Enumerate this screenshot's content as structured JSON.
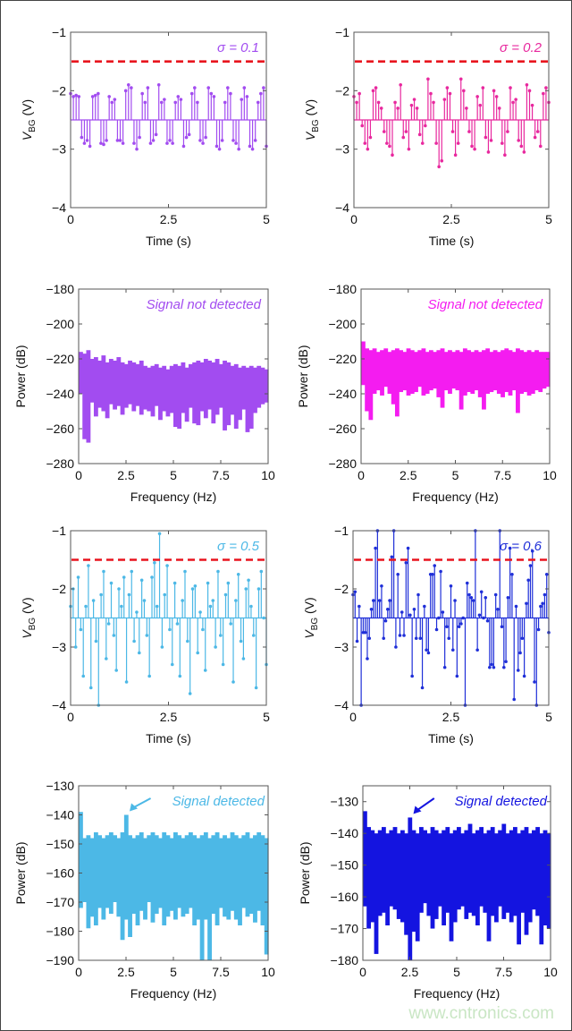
{
  "watermark": "www.cntronics.com",
  "threshold_color": "#e8141e",
  "chart_data": [
    {
      "type": "stem",
      "annotation": "σ = 0.1",
      "color": "#a24cf0",
      "xlim": [
        0,
        5
      ],
      "ylim": [
        -4,
        -1
      ],
      "xticks": [
        0,
        2.5,
        5
      ],
      "yticks": [
        -4,
        -3,
        -2,
        -1
      ],
      "xlabel": "Time (s)",
      "ylabel": {
        "symbol": "V",
        "subscript": "BG",
        "unit": " (V)"
      },
      "baseline": -2.5,
      "threshold": -1.5,
      "values": [
        -2.05,
        -2.1,
        -2.08,
        -2.1,
        -2.8,
        -2.9,
        -2.85,
        -2.95,
        -2.1,
        -2.08,
        -2.05,
        -2.9,
        -2.92,
        -2.85,
        -2.1,
        -2.2,
        -2.15,
        -2.85,
        -2.85,
        -2.9,
        -2.0,
        -1.9,
        -1.95,
        -2.9,
        -3.0,
        -2.8,
        -2.05,
        -2.2,
        -1.95,
        -2.9,
        -2.85,
        -2.75,
        -1.9,
        -2.2,
        -2.15,
        -2.9,
        -2.85,
        -2.9,
        -2.2,
        -2.1,
        -2.15,
        -2.95,
        -2.8,
        -2.75,
        -2.05,
        -1.95,
        -2.2,
        -2.85,
        -2.9,
        -2.8,
        -1.95,
        -2.05,
        -2.1,
        -2.95,
        -3.0,
        -2.85,
        -2.2,
        -1.95,
        -2.05,
        -2.85,
        -2.9,
        -3.0,
        -2.15,
        -1.95,
        -2.1,
        -2.95,
        -3.0,
        -2.85,
        -2.2,
        -2.05,
        -1.95,
        -2.95
      ]
    },
    {
      "type": "stem",
      "annotation": "σ = 0.2",
      "color": "#e8289e",
      "xlim": [
        0,
        5
      ],
      "ylim": [
        -4,
        -1
      ],
      "xticks": [
        0,
        2.5,
        5
      ],
      "yticks": [
        -4,
        -3,
        -2,
        -1
      ],
      "xlabel": "Time (s)",
      "ylabel": {
        "symbol": "V",
        "subscript": "BG",
        "unit": " (V)"
      },
      "baseline": -2.5,
      "threshold": -1.5,
      "values": [
        -2.1,
        -2.2,
        -2.05,
        -2.6,
        -2.9,
        -3.0,
        -2.8,
        -2.0,
        -1.95,
        -2.2,
        -2.3,
        -2.7,
        -2.9,
        -2.95,
        -3.1,
        -2.2,
        -2.3,
        -1.9,
        -2.8,
        -2.7,
        -3.0,
        -2.25,
        -2.15,
        -2.3,
        -2.75,
        -2.9,
        -2.6,
        -1.8,
        -2.05,
        -2.2,
        -2.9,
        -3.3,
        -3.2,
        -2.15,
        -1.95,
        -2.05,
        -2.7,
        -3.1,
        -2.9,
        -1.8,
        -2.0,
        -2.3,
        -2.7,
        -2.95,
        -3.0,
        -2.1,
        -2.25,
        -1.95,
        -2.8,
        -3.05,
        -2.85,
        -2.0,
        -2.1,
        -2.3,
        -2.9,
        -3.1,
        -2.7,
        -1.95,
        -2.2,
        -2.15,
        -2.85,
        -2.95,
        -3.05,
        -1.9,
        -2.0,
        -2.25,
        -2.8,
        -2.7,
        -2.95,
        -2.05,
        -1.95,
        -2.2
      ]
    },
    {
      "type": "spectrum",
      "annotation": "Signal not detected",
      "color": "#a24cf0",
      "xlim": [
        0,
        10
      ],
      "ylim": [
        -280,
        -180
      ],
      "xticks": [
        0,
        2.5,
        5,
        7.5,
        10
      ],
      "yticks": [
        -280,
        -260,
        -240,
        -220,
        -200,
        -180
      ],
      "xlabel": "Frequency (Hz)",
      "ylabel": "Power (dB)",
      "upper": [
        -216,
        -217,
        -215,
        -220,
        -219,
        -221,
        -218,
        -222,
        -220,
        -221,
        -219,
        -222,
        -223,
        -221,
        -222,
        -223,
        -221,
        -224,
        -225,
        -224,
        -223,
        -225,
        -224,
        -226,
        -224,
        -223,
        -224,
        -222,
        -225,
        -223,
        -222,
        -221,
        -222,
        -220,
        -221,
        -222,
        -220,
        -223,
        -221,
        -222,
        -224,
        -223,
        -225,
        -224,
        -225,
        -224,
        -225,
        -224,
        -225,
        -226
      ],
      "lower": [
        -240,
        -266,
        -268,
        -245,
        -253,
        -248,
        -250,
        -254,
        -246,
        -249,
        -247,
        -252,
        -248,
        -246,
        -250,
        -247,
        -252,
        -249,
        -250,
        -253,
        -247,
        -255,
        -250,
        -253,
        -251,
        -259,
        -260,
        -251,
        -256,
        -248,
        -257,
        -258,
        -250,
        -254,
        -249,
        -257,
        -252,
        -248,
        -261,
        -258,
        -252,
        -260,
        -255,
        -249,
        -262,
        -260,
        -251,
        -248,
        -246,
        -245
      ]
    },
    {
      "type": "spectrum",
      "annotation": "Signal not detected",
      "color": "#f41cf0",
      "xlim": [
        0,
        10
      ],
      "ylim": [
        -280,
        -180
      ],
      "xticks": [
        0,
        2.5,
        5,
        7.5,
        10
      ],
      "yticks": [
        -280,
        -260,
        -240,
        -220,
        -200,
        -180
      ],
      "xlabel": "Frequency (Hz)",
      "ylabel": "Power (dB)",
      "upper": [
        -210,
        -214,
        -215,
        -214,
        -216,
        -215,
        -214,
        -216,
        -215,
        -214,
        -215,
        -216,
        -214,
        -215,
        -216,
        -215,
        -214,
        -216,
        -215,
        -216,
        -215,
        -214,
        -216,
        -215,
        -216,
        -215,
        -216,
        -214,
        -215,
        -216,
        -215,
        -216,
        -215,
        -214,
        -216,
        -215,
        -216,
        -215,
        -214,
        -215,
        -216,
        -214,
        -215,
        -216,
        -215,
        -216,
        -215,
        -216,
        -216,
        -216
      ],
      "lower": [
        -235,
        -250,
        -255,
        -240,
        -238,
        -241,
        -236,
        -240,
        -246,
        -253,
        -239,
        -238,
        -241,
        -240,
        -239,
        -236,
        -241,
        -240,
        -238,
        -237,
        -242,
        -248,
        -238,
        -240,
        -237,
        -238,
        -249,
        -241,
        -239,
        -240,
        -238,
        -242,
        -249,
        -240,
        -239,
        -238,
        -240,
        -242,
        -239,
        -241,
        -238,
        -251,
        -240,
        -239,
        -241,
        -240,
        -238,
        -239,
        -237,
        -236
      ]
    },
    {
      "type": "stem",
      "annotation": "σ = 0.5",
      "color": "#4cb8e6",
      "xlim": [
        0,
        5
      ],
      "ylim": [
        -4,
        -1
      ],
      "xticks": [
        0,
        2.5,
        5
      ],
      "yticks": [
        -4,
        -3,
        -2,
        -1
      ],
      "xlabel": "Time (s)",
      "ylabel": {
        "symbol": "V",
        "subscript": "BG",
        "unit": " (V)"
      },
      "baseline": -2.5,
      "threshold": -1.5,
      "values": [
        -2.3,
        -2.0,
        -3.0,
        -1.8,
        -2.7,
        -3.5,
        -2.3,
        -1.6,
        -3.7,
        -2.2,
        -2.9,
        -4.0,
        -2.1,
        -1.7,
        -3.2,
        -2.6,
        -1.9,
        -2.8,
        -3.4,
        -2.0,
        -2.3,
        -1.8,
        -3.6,
        -2.1,
        -1.7,
        -2.9,
        -2.4,
        -3.1,
        -1.85,
        -2.2,
        -2.8,
        -3.5,
        -1.8,
        -1.55,
        -2.3,
        -1.05,
        -3.0,
        -2.1,
        -1.6,
        -2.7,
        -3.3,
        -1.9,
        -2.6,
        -3.5,
        -2.2,
        -1.7,
        -2.9,
        -3.8,
        -2.0,
        -1.95,
        -3.1,
        -2.4,
        -2.7,
        -3.4,
        -1.9,
        -2.3,
        -2.2,
        -3.0,
        -1.7,
        -2.8,
        -3.3,
        -2.1,
        -1.9,
        -2.6,
        -3.6,
        -2.2,
        -1.75,
        -2.9,
        -3.2,
        -2.0,
        -1.85,
        -2.3,
        -2.8,
        -3.7,
        -2.0,
        -1.7,
        -2.5,
        -3.3
      ]
    },
    {
      "type": "stem",
      "annotation": "σ = 0.6",
      "color": "#1f2fd8",
      "xlim": [
        0,
        5
      ],
      "ylim": [
        -4,
        -1
      ],
      "xticks": [
        0,
        2.5,
        5
      ],
      "yticks": [
        -4,
        -3,
        -2,
        -1
      ],
      "xlabel": "Time (s)",
      "ylabel": {
        "symbol": "V",
        "subscript": "BG",
        "unit": " (V)"
      },
      "baseline": -2.5,
      "threshold": -1.5,
      "values": [
        -2.1,
        -2.05,
        -2.9,
        -2.3,
        -4.0,
        -2.75,
        -2.75,
        -3.2,
        -2.85,
        -2.35,
        -2.2,
        -1.3,
        -1.0,
        -2.2,
        -1.95,
        -2.85,
        -2.55,
        -2.35,
        -2.2,
        -1.45,
        -1.0,
        -3.0,
        -1.75,
        -2.8,
        -2.4,
        -2.8,
        -1.55,
        -1.3,
        -2.45,
        -3.5,
        -2.35,
        -2.85,
        -2.1,
        -2.85,
        -3.7,
        -2.3,
        -3.05,
        -3.1,
        -1.75,
        -1.75,
        -1.6,
        -2.7,
        -2.5,
        -1.7,
        -2.4,
        -3.35,
        -2.65,
        -2.85,
        -1.95,
        -3.05,
        -2.2,
        -3.5,
        -2.65,
        -2.6,
        -2.5,
        -4.0,
        -1.9,
        -2.1,
        -2.15,
        -2.2,
        -1.0,
        -3.05,
        -2.45,
        -2.05,
        -2.5,
        -2.15,
        -2.55,
        -3.35,
        -3.3,
        -3.35,
        -2.1,
        -2.35,
        -1.0,
        -2.65,
        -3.35,
        -3.25,
        -2.15,
        -1.3,
        -1.75,
        -3.9,
        -2.3,
        -3.4,
        -3.1,
        -2.85,
        -3.5,
        -2.25,
        -1.85,
        -1.6,
        -1.35,
        -3.6,
        -4.0,
        -2.7,
        -2.3,
        -2.25,
        -2.1,
        -1.75,
        -2.75
      ]
    },
    {
      "type": "spectrum",
      "annotation": "Signal detected",
      "annotation_arrow_x": 2.5,
      "color": "#4cb8e6",
      "xlim": [
        0,
        10
      ],
      "ylim": [
        -190,
        -130
      ],
      "xticks": [
        0,
        2.5,
        5,
        7.5,
        10
      ],
      "yticks": [
        -190,
        -180,
        -170,
        -160,
        -150,
        -140,
        -130
      ],
      "xlabel": "Frequency (Hz)",
      "ylabel": "Power (dB)",
      "upper": [
        -139,
        -148,
        -147,
        -148,
        -146,
        -147,
        -148,
        -147,
        -146,
        -147,
        -148,
        -146,
        -140,
        -147,
        -148,
        -147,
        -146,
        -148,
        -147,
        -146,
        -147,
        -148,
        -146,
        -147,
        -148,
        -146,
        -147,
        -148,
        -147,
        -146,
        -147,
        -148,
        -147,
        -146,
        -148,
        -147,
        -146,
        -148,
        -147,
        -148,
        -146,
        -147,
        -148,
        -147,
        -146,
        -148,
        -147,
        -146,
        -147,
        -148
      ],
      "lower": [
        -172,
        -170,
        -179,
        -175,
        -178,
        -172,
        -176,
        -172,
        -174,
        -170,
        -175,
        -183,
        -176,
        -182,
        -174,
        -178,
        -173,
        -176,
        -170,
        -177,
        -174,
        -172,
        -178,
        -175,
        -173,
        -176,
        -172,
        -175,
        -174,
        -172,
        -178,
        -176,
        -190,
        -176,
        -190,
        -174,
        -178,
        -172,
        -175,
        -176,
        -173,
        -176,
        -178,
        -172,
        -175,
        -174,
        -177,
        -173,
        -178,
        -188
      ]
    },
    {
      "type": "spectrum",
      "annotation": "Signal detected",
      "annotation_arrow_x": 2.5,
      "color": "#1414e0",
      "xlim": [
        0,
        10
      ],
      "ylim": [
        -180,
        -125
      ],
      "xticks": [
        0,
        2.5,
        5,
        7.5,
        10
      ],
      "yticks": [
        -180,
        -170,
        -160,
        -150,
        -140,
        -130
      ],
      "xlabel": "Frequency (Hz)",
      "ylabel": "Power (dB)",
      "upper": [
        -133,
        -138,
        -139,
        -140,
        -139,
        -138,
        -140,
        -139,
        -138,
        -140,
        -139,
        -140,
        -135,
        -139,
        -140,
        -138,
        -139,
        -140,
        -138,
        -139,
        -140,
        -139,
        -138,
        -140,
        -139,
        -138,
        -140,
        -139,
        -137,
        -140,
        -139,
        -138,
        -140,
        -139,
        -138,
        -140,
        -139,
        -137,
        -140,
        -139,
        -138,
        -140,
        -139,
        -138,
        -140,
        -139,
        -138,
        -140,
        -139,
        -140
      ],
      "lower": [
        -163,
        -170,
        -168,
        -178,
        -166,
        -165,
        -169,
        -163,
        -164,
        -167,
        -168,
        -172,
        -180,
        -171,
        -174,
        -165,
        -162,
        -166,
        -170,
        -167,
        -163,
        -169,
        -165,
        -174,
        -168,
        -164,
        -163,
        -167,
        -165,
        -166,
        -169,
        -163,
        -165,
        -174,
        -166,
        -168,
        -163,
        -167,
        -165,
        -168,
        -166,
        -175,
        -165,
        -172,
        -168,
        -164,
        -166,
        -175,
        -169,
        -170
      ]
    }
  ]
}
